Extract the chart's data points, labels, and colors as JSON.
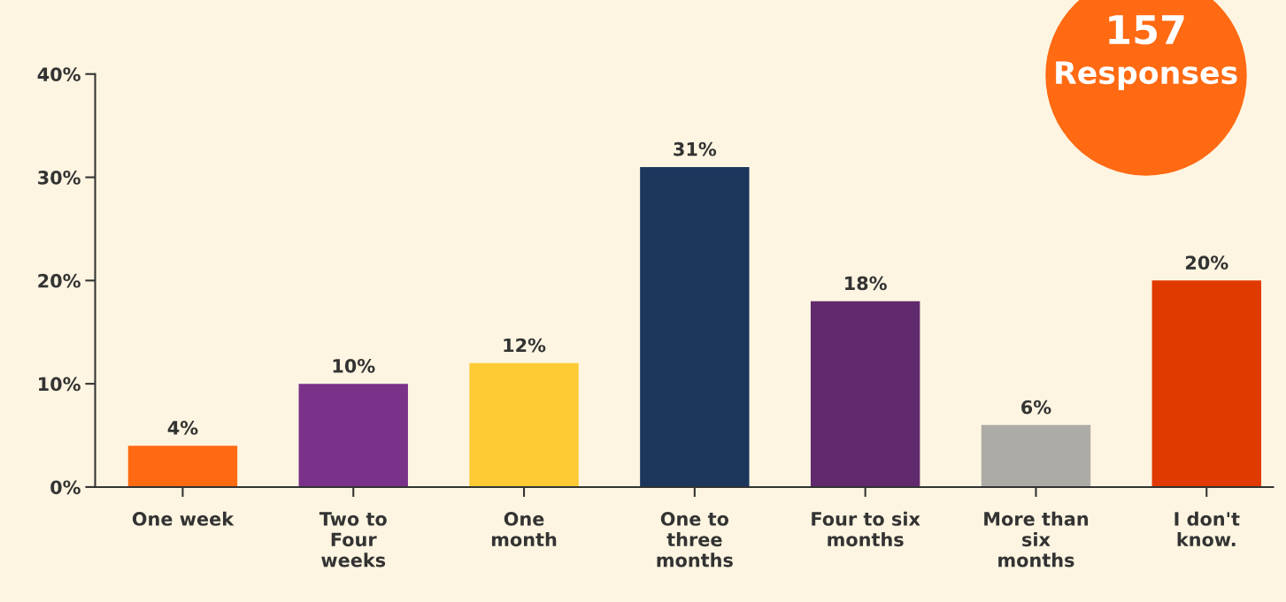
{
  "chart_data": {
    "type": "bar",
    "categories": [
      "One week",
      "Two to\nFour\nweeks",
      "One\nmonth",
      "One to\nthree\nmonths",
      "Four to six\nmonths",
      "More than\nsix\nmonths",
      "I don't\nknow."
    ],
    "values": [
      4,
      10,
      12,
      31,
      18,
      6,
      20
    ],
    "colors": [
      "#ff6a13",
      "#7a318a",
      "#ffcb35",
      "#1c365c",
      "#622a6e",
      "#adaba6",
      "#e03a00"
    ],
    "value_labels": [
      "4%",
      "10%",
      "12%",
      "31%",
      "18%",
      "6%",
      "20%"
    ],
    "ylim": [
      0,
      40
    ],
    "yticks": [
      {
        "value": 0,
        "label": "0%"
      },
      {
        "value": 10,
        "label": "10%"
      },
      {
        "value": 20,
        "label": "20%"
      },
      {
        "value": 30,
        "label": "30%"
      },
      {
        "value": 40,
        "label": "40%"
      }
    ],
    "grid": false,
    "legend": false,
    "annotations": [
      "157",
      "Responses"
    ]
  }
}
